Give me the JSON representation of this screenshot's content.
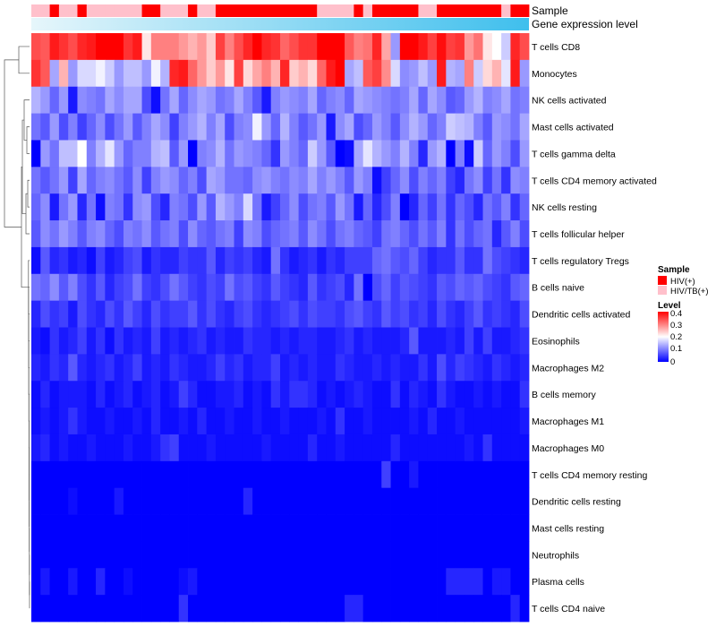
{
  "chart_data": {
    "type": "heatmap",
    "title": "",
    "annotations": [
      {
        "name": "Sample"
      },
      {
        "name": "Gene expression level"
      }
    ],
    "rows": [
      "T cells CD8",
      "Monocytes",
      "NK cells activated",
      "Mast cells activated",
      "T cells gamma delta",
      "T cells CD4 memory activated",
      "NK cells resting",
      "T cells follicular helper",
      "T cells regulatory  Tregs",
      "B cells naive",
      "Dendritic cells activated",
      "Eosinophils",
      "Macrophages M2",
      "B cells memory",
      "Macrophages M1",
      "Macrophages M0",
      "T cells CD4 memory resting",
      "Dendritic cells resting",
      "Mast cells resting",
      "Neutrophils",
      "Plasma cells",
      "T cells CD4 naive"
    ],
    "sample_groups": [
      "HIV/TB(+)",
      "HIV/TB(+)",
      "HIV(+)",
      "HIV/TB(+)",
      "HIV/TB(+)",
      "HIV(+)",
      "HIV/TB(+)",
      "HIV/TB(+)",
      "HIV/TB(+)",
      "HIV/TB(+)",
      "HIV/TB(+)",
      "HIV/TB(+)",
      "HIV(+)",
      "HIV(+)",
      "HIV/TB(+)",
      "HIV/TB(+)",
      "HIV/TB(+)",
      "HIV(+)",
      "HIV/TB(+)",
      "HIV/TB(+)",
      "HIV(+)",
      "HIV(+)",
      "HIV(+)",
      "HIV(+)",
      "HIV(+)",
      "HIV(+)",
      "HIV(+)",
      "HIV(+)",
      "HIV(+)",
      "HIV(+)",
      "HIV(+)",
      "HIV/TB(+)",
      "HIV/TB(+)",
      "HIV/TB(+)",
      "HIV/TB(+)",
      "HIV(+)",
      "HIV/TB(+)",
      "HIV(+)",
      "HIV(+)",
      "HIV(+)",
      "HIV(+)",
      "HIV(+)",
      "HIV/TB(+)",
      "HIV/TB(+)",
      "HIV(+)",
      "HIV(+)",
      "HIV(+)",
      "HIV(+)",
      "HIV(+)",
      "HIV(+)",
      "HIV(+)",
      "HIV/TB(+)",
      "HIV(+)",
      "HIV(+)"
    ],
    "legend": {
      "sample_title": "Sample",
      "sample_entries": [
        {
          "label": "HIV(+)",
          "color": "#ff0000"
        },
        {
          "label": "HIV/TB(+)",
          "color": "#ffc0cb"
        }
      ],
      "level_title": "Level",
      "level_ticks": [
        "0.4",
        "0.3",
        "0.2",
        "0.1",
        "0"
      ],
      "level_range": [
        0,
        0.4
      ],
      "placement": "right"
    },
    "colors": {
      "low": "#0000ff",
      "mid": "#ffffff",
      "high": "#ff0000",
      "annot_low": "#e6f6fb",
      "annot_high": "#3fbfed"
    },
    "values": [
      [
        0.34,
        0.33,
        0.38,
        0.36,
        0.34,
        0.37,
        0.38,
        0.4,
        0.4,
        0.4,
        0.36,
        0.38,
        0.22,
        0.3,
        0.3,
        0.3,
        0.28,
        0.26,
        0.28,
        0.24,
        0.35,
        0.3,
        0.34,
        0.37,
        0.4,
        0.37,
        0.36,
        0.32,
        0.34,
        0.36,
        0.36,
        0.4,
        0.4,
        0.4,
        0.33,
        0.3,
        0.31,
        0.37,
        0.27,
        0.12,
        0.4,
        0.4,
        0.38,
        0.35,
        0.39,
        0.35,
        0.36,
        0.28,
        0.31,
        0.22,
        0.2,
        0.16,
        0.37,
        0.34
      ],
      [
        0.36,
        0.33,
        0.13,
        0.26,
        0.12,
        0.17,
        0.17,
        0.19,
        0.16,
        0.12,
        0.15,
        0.15,
        0.12,
        0.19,
        0.14,
        0.37,
        0.38,
        0.32,
        0.28,
        0.24,
        0.28,
        0.22,
        0.35,
        0.23,
        0.27,
        0.3,
        0.26,
        0.37,
        0.24,
        0.26,
        0.23,
        0.32,
        0.38,
        0.4,
        0.13,
        0.15,
        0.33,
        0.35,
        0.29,
        0.17,
        0.11,
        0.12,
        0.15,
        0.12,
        0.38,
        0.14,
        0.13,
        0.3,
        0.16,
        0.23,
        0.26,
        0.18,
        0.38,
        0.12
      ],
      [
        0.14,
        0.12,
        0.08,
        0.12,
        0.02,
        0.11,
        0.1,
        0.09,
        0.13,
        0.11,
        0.13,
        0.13,
        0.06,
        0.01,
        0.09,
        0.13,
        0.08,
        0.11,
        0.13,
        0.12,
        0.09,
        0.1,
        0.13,
        0.1,
        0.07,
        0.02,
        0.1,
        0.12,
        0.11,
        0.1,
        0.13,
        0.08,
        0.1,
        0.11,
        0.08,
        0.13,
        0.12,
        0.11,
        0.1,
        0.09,
        0.1,
        0.13,
        0.08,
        0.13,
        0.11,
        0.07,
        0.08,
        0.12,
        0.14,
        0.1,
        0.11,
        0.13,
        0.09,
        0.1
      ],
      [
        0.09,
        0.07,
        0.12,
        0.06,
        0.1,
        0.05,
        0.08,
        0.11,
        0.06,
        0.09,
        0.12,
        0.07,
        0.1,
        0.13,
        0.11,
        0.05,
        0.1,
        0.12,
        0.14,
        0.1,
        0.13,
        0.06,
        0.1,
        0.11,
        0.19,
        0.12,
        0.08,
        0.14,
        0.1,
        0.07,
        0.09,
        0.12,
        0.02,
        0.11,
        0.13,
        0.06,
        0.08,
        0.12,
        0.1,
        0.07,
        0.11,
        0.14,
        0.12,
        0.08,
        0.1,
        0.16,
        0.15,
        0.14,
        0.1,
        0.07,
        0.12,
        0.11,
        0.09,
        0.13
      ],
      [
        0.0,
        0.12,
        0.09,
        0.15,
        0.15,
        0.2,
        0.1,
        0.14,
        0.18,
        0.12,
        0.08,
        0.1,
        0.1,
        0.14,
        0.15,
        0.07,
        0.12,
        0.0,
        0.1,
        0.11,
        0.14,
        0.09,
        0.12,
        0.11,
        0.1,
        0.08,
        0.04,
        0.12,
        0.1,
        0.08,
        0.16,
        0.12,
        0.07,
        0.0,
        0.01,
        0.13,
        0.18,
        0.14,
        0.12,
        0.1,
        0.14,
        0.1,
        0.03,
        0.12,
        0.14,
        0.0,
        0.1,
        0.01,
        0.16,
        0.08,
        0.12,
        0.1,
        0.06,
        0.12
      ],
      [
        0.09,
        0.07,
        0.09,
        0.12,
        0.05,
        0.13,
        0.08,
        0.1,
        0.11,
        0.09,
        0.07,
        0.11,
        0.05,
        0.1,
        0.12,
        0.11,
        0.08,
        0.1,
        0.06,
        0.13,
        0.12,
        0.09,
        0.09,
        0.08,
        0.11,
        0.12,
        0.1,
        0.09,
        0.11,
        0.1,
        0.13,
        0.1,
        0.12,
        0.1,
        0.07,
        0.12,
        0.1,
        0.01,
        0.05,
        0.08,
        0.11,
        0.06,
        0.1,
        0.08,
        0.1,
        0.05,
        0.03,
        0.09,
        0.11,
        0.05,
        0.09,
        0.04,
        0.11,
        0.1
      ],
      [
        0.08,
        0.11,
        0.02,
        0.09,
        0.12,
        0.03,
        0.09,
        0.01,
        0.1,
        0.09,
        0.04,
        0.11,
        0.12,
        0.06,
        0.03,
        0.1,
        0.09,
        0.06,
        0.12,
        0.07,
        0.14,
        0.12,
        0.1,
        0.17,
        0.09,
        0.02,
        0.05,
        0.08,
        0.11,
        0.06,
        0.09,
        0.1,
        0.07,
        0.12,
        0.09,
        0.02,
        0.08,
        0.03,
        0.06,
        0.1,
        0.0,
        0.03,
        0.08,
        0.05,
        0.09,
        0.04,
        0.08,
        0.06,
        0.03,
        0.09,
        0.07,
        0.1,
        0.04,
        0.08
      ],
      [
        0.07,
        0.11,
        0.09,
        0.12,
        0.1,
        0.07,
        0.1,
        0.11,
        0.08,
        0.06,
        0.1,
        0.09,
        0.11,
        0.07,
        0.09,
        0.1,
        0.06,
        0.11,
        0.08,
        0.07,
        0.09,
        0.1,
        0.05,
        0.11,
        0.1,
        0.06,
        0.08,
        0.09,
        0.1,
        0.07,
        0.11,
        0.09,
        0.06,
        0.09,
        0.1,
        0.08,
        0.07,
        0.05,
        0.09,
        0.1,
        0.08,
        0.06,
        0.09,
        0.07,
        0.1,
        0.04,
        0.09,
        0.06,
        0.08,
        0.09,
        0.03,
        0.07,
        0.1,
        0.06
      ],
      [
        0.01,
        0.07,
        0.03,
        0.04,
        0.02,
        0.03,
        0.01,
        0.05,
        0.02,
        0.03,
        0.05,
        0.06,
        0.02,
        0.04,
        0.03,
        0.03,
        0.05,
        0.04,
        0.04,
        0.07,
        0.03,
        0.05,
        0.04,
        0.05,
        0.03,
        0.02,
        0.09,
        0.04,
        0.02,
        0.03,
        0.04,
        0.02,
        0.04,
        0.03,
        0.05,
        0.05,
        0.05,
        0.08,
        0.09,
        0.07,
        0.06,
        0.08,
        0.05,
        0.03,
        0.04,
        0.04,
        0.07,
        0.04,
        0.04,
        0.09,
        0.06,
        0.05,
        0.04,
        0.03
      ],
      [
        0.09,
        0.08,
        0.11,
        0.07,
        0.1,
        0.06,
        0.04,
        0.07,
        0.03,
        0.05,
        0.06,
        0.09,
        0.05,
        0.04,
        0.06,
        0.09,
        0.07,
        0.05,
        0.04,
        0.06,
        0.05,
        0.09,
        0.06,
        0.07,
        0.05,
        0.04,
        0.07,
        0.05,
        0.04,
        0.03,
        0.07,
        0.04,
        0.05,
        0.06,
        0.03,
        0.09,
        0.0,
        0.06,
        0.08,
        0.05,
        0.07,
        0.06,
        0.05,
        0.04,
        0.07,
        0.06,
        0.08,
        0.07,
        0.08,
        0.06,
        0.05,
        0.04,
        0.07,
        0.08
      ],
      [
        0.03,
        0.06,
        0.04,
        0.05,
        0.02,
        0.06,
        0.04,
        0.03,
        0.06,
        0.04,
        0.07,
        0.05,
        0.03,
        0.06,
        0.04,
        0.05,
        0.05,
        0.07,
        0.04,
        0.06,
        0.04,
        0.03,
        0.05,
        0.06,
        0.04,
        0.03,
        0.04,
        0.05,
        0.06,
        0.04,
        0.06,
        0.05,
        0.05,
        0.04,
        0.06,
        0.07,
        0.05,
        0.04,
        0.07,
        0.05,
        0.06,
        0.04,
        0.05,
        0.03,
        0.06,
        0.04,
        0.03,
        0.05,
        0.07,
        0.04,
        0.05,
        0.04,
        0.03,
        0.06
      ],
      [
        0.02,
        0.01,
        0.04,
        0.02,
        0.03,
        0.05,
        0.02,
        0.04,
        0.01,
        0.04,
        0.02,
        0.03,
        0.02,
        0.05,
        0.02,
        0.03,
        0.02,
        0.03,
        0.04,
        0.02,
        0.03,
        0.02,
        0.02,
        0.04,
        0.03,
        0.03,
        0.02,
        0.03,
        0.02,
        0.03,
        0.03,
        0.02,
        0.02,
        0.03,
        0.04,
        0.02,
        0.03,
        0.02,
        0.02,
        0.02,
        0.03,
        0.07,
        0.02,
        0.02,
        0.02,
        0.03,
        0.02,
        0.05,
        0.02,
        0.05,
        0.02,
        0.02,
        0.03,
        0.04
      ],
      [
        0.03,
        0.02,
        0.04,
        0.03,
        0.07,
        0.03,
        0.02,
        0.03,
        0.04,
        0.02,
        0.03,
        0.05,
        0.02,
        0.03,
        0.02,
        0.04,
        0.03,
        0.02,
        0.02,
        0.03,
        0.05,
        0.03,
        0.04,
        0.02,
        0.03,
        0.03,
        0.05,
        0.02,
        0.03,
        0.02,
        0.03,
        0.02,
        0.02,
        0.04,
        0.03,
        0.02,
        0.02,
        0.03,
        0.02,
        0.03,
        0.02,
        0.02,
        0.04,
        0.02,
        0.06,
        0.03,
        0.05,
        0.04,
        0.03,
        0.02,
        0.04,
        0.03,
        0.02,
        0.03
      ],
      [
        0.01,
        0.03,
        0.01,
        0.02,
        0.02,
        0.02,
        0.01,
        0.03,
        0.01,
        0.02,
        0.03,
        0.01,
        0.02,
        0.03,
        0.01,
        0.02,
        0.05,
        0.03,
        0.01,
        0.01,
        0.02,
        0.02,
        0.03,
        0.01,
        0.02,
        0.01,
        0.04,
        0.02,
        0.04,
        0.04,
        0.03,
        0.01,
        0.02,
        0.01,
        0.02,
        0.03,
        0.02,
        0.01,
        0.01,
        0.04,
        0.01,
        0.03,
        0.02,
        0.01,
        0.04,
        0.02,
        0.01,
        0.01,
        0.02,
        0.01,
        0.02,
        0.01,
        0.01,
        0.04
      ],
      [
        0.01,
        0.02,
        0.01,
        0.02,
        0.04,
        0.02,
        0.01,
        0.01,
        0.02,
        0.01,
        0.01,
        0.02,
        0.01,
        0.03,
        0.01,
        0.01,
        0.02,
        0.01,
        0.03,
        0.01,
        0.01,
        0.02,
        0.01,
        0.01,
        0.02,
        0.01,
        0.01,
        0.02,
        0.01,
        0.01,
        0.01,
        0.02,
        0.01,
        0.04,
        0.01,
        0.01,
        0.02,
        0.01,
        0.01,
        0.01,
        0.01,
        0.02,
        0.01,
        0.03,
        0.01,
        0.01,
        0.02,
        0.01,
        0.01,
        0.01,
        0.01,
        0.01,
        0.01,
        0.02
      ],
      [
        0.02,
        0.03,
        0.01,
        0.02,
        0.01,
        0.01,
        0.02,
        0.01,
        0.01,
        0.01,
        0.02,
        0.01,
        0.01,
        0.02,
        0.04,
        0.05,
        0.01,
        0.01,
        0.01,
        0.02,
        0.01,
        0.01,
        0.01,
        0.01,
        0.01,
        0.02,
        0.01,
        0.01,
        0.01,
        0.01,
        0.03,
        0.01,
        0.01,
        0.02,
        0.01,
        0.01,
        0.01,
        0.01,
        0.01,
        0.03,
        0.01,
        0.01,
        0.01,
        0.01,
        0.01,
        0.01,
        0.01,
        0.02,
        0.01,
        0.04,
        0.01,
        0.01,
        0.01,
        0.01
      ],
      [
        0.0,
        0.0,
        0.0,
        0.0,
        0.0,
        0.0,
        0.0,
        0.0,
        0.0,
        0.0,
        0.0,
        0.0,
        0.0,
        0.0,
        0.0,
        0.0,
        0.0,
        0.0,
        0.0,
        0.0,
        0.0,
        0.0,
        0.0,
        0.0,
        0.0,
        0.0,
        0.0,
        0.0,
        0.0,
        0.0,
        0.0,
        0.0,
        0.0,
        0.0,
        0.0,
        0.0,
        0.0,
        0.0,
        0.05,
        0.0,
        0.0,
        0.02,
        0.0,
        0.0,
        0.0,
        0.0,
        0.0,
        0.0,
        0.0,
        0.0,
        0.0,
        0.0,
        0.0,
        0.0
      ],
      [
        0.0,
        0.0,
        0.0,
        0.0,
        0.01,
        0.0,
        0.0,
        0.0,
        0.0,
        0.02,
        0.0,
        0.0,
        0.0,
        0.0,
        0.0,
        0.0,
        0.0,
        0.0,
        0.0,
        0.0,
        0.0,
        0.0,
        0.0,
        0.03,
        0.0,
        0.0,
        0.0,
        0.0,
        0.0,
        0.0,
        0.0,
        0.0,
        0.0,
        0.0,
        0.0,
        0.0,
        0.0,
        0.0,
        0.0,
        0.0,
        0.0,
        0.0,
        0.0,
        0.0,
        0.0,
        0.0,
        0.0,
        0.0,
        0.0,
        0.0,
        0.0,
        0.0,
        0.0,
        0.0
      ],
      [
        0.0,
        0.0,
        0.0,
        0.0,
        0.0,
        0.0,
        0.0,
        0.0,
        0.0,
        0.0,
        0.0,
        0.0,
        0.0,
        0.0,
        0.0,
        0.0,
        0.0,
        0.0,
        0.0,
        0.0,
        0.0,
        0.0,
        0.0,
        0.0,
        0.0,
        0.0,
        0.0,
        0.0,
        0.0,
        0.0,
        0.0,
        0.0,
        0.0,
        0.0,
        0.0,
        0.0,
        0.0,
        0.0,
        0.0,
        0.0,
        0.0,
        0.0,
        0.0,
        0.0,
        0.0,
        0.0,
        0.0,
        0.0,
        0.0,
        0.0,
        0.0,
        0.0,
        0.0,
        0.0
      ],
      [
        0.0,
        0.0,
        0.0,
        0.0,
        0.0,
        0.0,
        0.0,
        0.0,
        0.0,
        0.0,
        0.0,
        0.0,
        0.0,
        0.0,
        0.0,
        0.0,
        0.0,
        0.0,
        0.0,
        0.0,
        0.0,
        0.0,
        0.0,
        0.0,
        0.0,
        0.0,
        0.0,
        0.0,
        0.0,
        0.0,
        0.0,
        0.0,
        0.0,
        0.0,
        0.0,
        0.0,
        0.0,
        0.0,
        0.0,
        0.0,
        0.0,
        0.0,
        0.0,
        0.0,
        0.0,
        0.0,
        0.0,
        0.0,
        0.0,
        0.0,
        0.0,
        0.0,
        0.0,
        0.0
      ],
      [
        0.0,
        0.02,
        0.0,
        0.0,
        0.02,
        0.0,
        0.0,
        0.03,
        0.0,
        0.0,
        0.01,
        0.0,
        0.0,
        0.0,
        0.0,
        0.0,
        0.01,
        0.02,
        0.0,
        0.0,
        0.0,
        0.0,
        0.0,
        0.0,
        0.0,
        0.0,
        0.0,
        0.0,
        0.0,
        0.0,
        0.0,
        0.0,
        0.0,
        0.0,
        0.0,
        0.0,
        0.0,
        0.0,
        0.0,
        0.0,
        0.0,
        0.0,
        0.0,
        0.0,
        0.0,
        0.03,
        0.03,
        0.03,
        0.03,
        0.0,
        0.02,
        0.02,
        0.0,
        0.0
      ],
      [
        0.0,
        0.0,
        0.0,
        0.0,
        0.0,
        0.0,
        0.0,
        0.0,
        0.0,
        0.0,
        0.0,
        0.0,
        0.0,
        0.0,
        0.0,
        0.0,
        0.04,
        0.0,
        0.0,
        0.0,
        0.0,
        0.0,
        0.0,
        0.0,
        0.0,
        0.0,
        0.0,
        0.0,
        0.0,
        0.0,
        0.0,
        0.0,
        0.0,
        0.0,
        0.03,
        0.03,
        0.0,
        0.0,
        0.0,
        0.0,
        0.0,
        0.0,
        0.0,
        0.0,
        0.0,
        0.0,
        0.0,
        0.0,
        0.0,
        0.0,
        0.0,
        0.0,
        0.03,
        0.0
      ]
    ]
  }
}
